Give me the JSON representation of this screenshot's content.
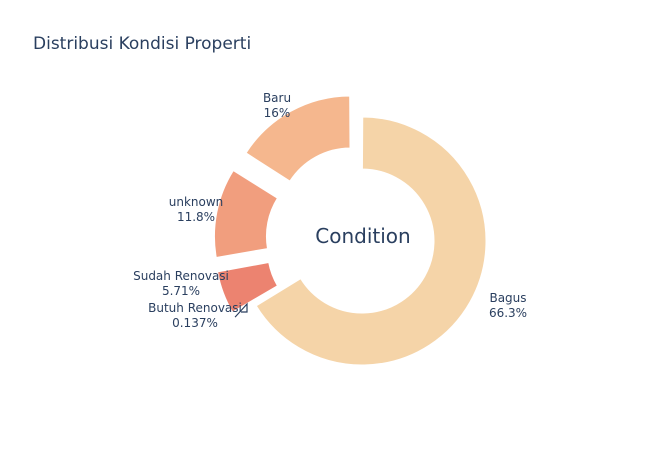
{
  "chart_data": {
    "type": "pie",
    "hole": true,
    "title": "Distribusi Kondisi Properti",
    "center_label": "Condition",
    "slices": [
      {
        "label": "Bagus",
        "percent_text": "66.3%",
        "value": 66.3,
        "color": "#f5d4a8"
      },
      {
        "label": "Butuh Renovasi",
        "percent_text": "0.137%",
        "value": 0.137,
        "color": "#e3705f"
      },
      {
        "label": "Sudah Renovasi",
        "percent_text": "5.71%",
        "value": 5.71,
        "color": "#ec8370"
      },
      {
        "label": "unknown",
        "percent_text": "11.8%",
        "value": 11.8,
        "color": "#f19e7e"
      },
      {
        "label": "Baru",
        "percent_text": "16%",
        "value": 16.0,
        "color": "#f5b78e"
      }
    ],
    "pulled_slices": [
      "Butuh Renovasi",
      "Sudah Renovasi",
      "unknown",
      "Baru"
    ]
  }
}
